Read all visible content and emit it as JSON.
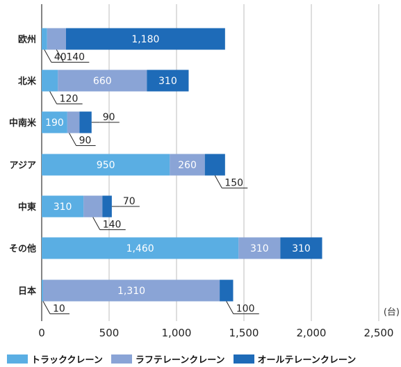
{
  "chart_data": {
    "type": "bar",
    "orientation": "horizontal",
    "stacked": true,
    "categories": [
      "欧州",
      "北米",
      "中南米",
      "アジア",
      "中東",
      "その他",
      "日本"
    ],
    "series": [
      {
        "name": "トラッククレーン",
        "values": [
          40,
          120,
          190,
          950,
          310,
          1460,
          10
        ],
        "labels": [
          "40",
          "120",
          "190",
          "950",
          "310",
          "1,460",
          "10"
        ]
      },
      {
        "name": "ラフテレーンクレーン",
        "values": [
          140,
          660,
          90,
          260,
          140,
          310,
          1310
        ],
        "labels": [
          "140",
          "660",
          "90",
          "260",
          "140",
          "310",
          "1,310"
        ]
      },
      {
        "name": "オールテレーンクレーン",
        "values": [
          1180,
          310,
          90,
          150,
          70,
          310,
          100
        ],
        "labels": [
          "1,180",
          "310",
          "90",
          "150",
          "70",
          "310",
          "100"
        ]
      }
    ],
    "colors": [
      "#5aaee3",
      "#8aa4d6",
      "#1e6bb8"
    ],
    "xlim": [
      0,
      2500
    ],
    "x_ticks": [
      0,
      500,
      1000,
      1500,
      2000,
      2500
    ],
    "x_tick_labels": [
      "0",
      "500",
      "1,000",
      "1,500",
      "2,000",
      "2,500"
    ],
    "unit_label": "(台)",
    "grid": "vertical",
    "legend_position": "bottom"
  }
}
